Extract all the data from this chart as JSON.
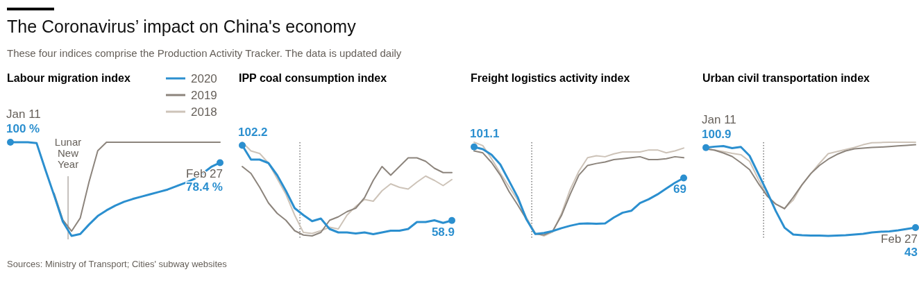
{
  "chart_data": [
    {
      "type": "other",
      "title": "The Coronavirus’ impact on China's economy",
      "subtitle": "These four indices comprise the Production Activity Tracker. The data is updated daily",
      "annotations": [
        "Sources: Ministry of Transport; Cities' subway websites"
      ]
    },
    {
      "type": "line",
      "title": "Labour migration index",
      "categories": [
        null,
        null,
        null,
        null,
        null,
        null,
        null,
        null,
        null,
        null,
        null,
        null,
        null,
        null,
        null,
        null,
        null,
        null,
        null,
        null,
        null,
        null,
        null,
        null,
        null
      ],
      "legend": "top right",
      "series": [
        {
          "name": "2020",
          "color": "#2b8fcf",
          "values": [
            100,
            100,
            100,
            99,
            71,
            44,
            16,
            1,
            3,
            13,
            22,
            28,
            33,
            37,
            40,
            42.5,
            45,
            47.5,
            50,
            53.5,
            57,
            61,
            67,
            74,
            78.4
          ],
          "value_labels": [
            "100 %",
            null,
            null,
            null,
            null,
            null,
            null,
            null,
            null,
            null,
            null,
            null,
            null,
            null,
            null,
            null,
            null,
            null,
            null,
            null,
            null,
            null,
            null,
            null,
            "78.4 %"
          ]
        },
        {
          "name": "2019",
          "color": "#8c847c",
          "values": [
            null,
            null,
            null,
            null,
            null,
            46,
            18,
            6,
            20,
            58,
            91,
            100,
            100,
            100,
            100,
            100,
            100,
            100,
            100,
            100,
            100,
            100,
            100,
            100,
            100
          ]
        },
        {
          "name": "2018",
          "color": "#cdc3b8",
          "values": [
            null,
            null,
            null,
            null,
            null,
            null,
            null,
            null,
            null,
            null,
            null,
            null,
            null,
            null,
            null,
            null,
            null,
            null,
            null,
            null,
            null,
            null,
            null,
            null,
            null
          ]
        }
      ],
      "annotations": [
        "Jan 11",
        "Feb 27",
        "Lunar New Year"
      ]
    },
    {
      "type": "line",
      "title": "IPP coal consumption index",
      "categories": [
        null,
        null,
        null,
        null,
        null,
        null,
        null,
        null,
        null,
        null,
        null,
        null,
        null,
        null,
        null,
        null,
        null,
        null,
        null,
        null,
        null,
        null,
        null,
        null,
        null
      ],
      "series": [
        {
          "color": "#2b8fcf",
          "values": [
            102.2,
            94,
            94,
            92,
            85,
            76,
            66,
            62,
            58.5,
            60,
            54,
            52,
            52,
            51.4,
            52,
            51,
            52,
            53,
            53,
            54,
            58,
            58,
            59,
            57.5,
            58.9
          ],
          "value_labels": [
            "102.2",
            null,
            null,
            null,
            null,
            null,
            null,
            null,
            null,
            null,
            null,
            null,
            null,
            null,
            null,
            null,
            null,
            null,
            null,
            null,
            null,
            null,
            null,
            null,
            "58.9"
          ]
        },
        {
          "color": "#8c847c",
          "values": [
            90,
            86,
            78,
            69,
            63,
            59,
            53,
            50.5,
            50,
            52,
            59,
            61,
            64,
            66,
            72,
            82,
            90,
            85,
            90,
            95,
            95,
            93,
            89,
            86.5,
            86.5
          ]
        },
        {
          "color": "#cdc3b8",
          "values": [
            104,
            99,
            97.5,
            92,
            83,
            74,
            62,
            52,
            51.4,
            53,
            55,
            54,
            62,
            67,
            71,
            70,
            76,
            80,
            78,
            77,
            81,
            84.5,
            82,
            79,
            82.5
          ]
        }
      ]
    },
    {
      "type": "line",
      "title": "Freight logistics activity index",
      "categories": [
        null,
        null,
        null,
        null,
        null,
        null,
        null,
        null,
        null,
        null,
        null,
        null,
        null,
        null,
        null,
        null,
        null,
        null,
        null,
        null,
        null,
        null,
        null,
        null,
        null
      ],
      "series": [
        {
          "color": "#2b8fcf",
          "values": [
            101.1,
            98.8,
            93,
            83,
            66,
            49,
            26,
            11,
            12,
            14,
            17,
            19.5,
            21.5,
            22,
            21.5,
            22,
            28,
            33,
            35,
            43,
            47,
            52,
            58,
            64,
            69
          ],
          "value_labels": [
            "101.1",
            null,
            null,
            null,
            null,
            null,
            null,
            null,
            null,
            null,
            null,
            null,
            null,
            null,
            null,
            null,
            null,
            null,
            null,
            null,
            null,
            null,
            null,
            null,
            "69"
          ]
        },
        {
          "color": "#8c847c",
          "values": [
            97,
            95,
            85,
            72,
            55,
            41,
            26,
            11,
            10,
            14,
            30,
            52,
            72,
            82,
            84,
            85.5,
            88,
            89,
            90,
            91,
            88,
            88,
            89,
            91,
            90
          ]
        },
        {
          "color": "#cdc3b8",
          "values": [
            106,
            102.5,
            89,
            74,
            60,
            46,
            28,
            12,
            9,
            13,
            32,
            57,
            76,
            90,
            92,
            91,
            94,
            96,
            96,
            96,
            98,
            98,
            95,
            97,
            100
          ]
        }
      ]
    },
    {
      "type": "line",
      "title": "Urban civil transportation index",
      "categories": [
        null,
        null,
        null,
        null,
        null,
        null,
        null,
        null,
        null,
        null,
        null,
        null,
        null,
        null,
        null,
        null,
        null,
        null,
        null,
        null,
        null,
        null,
        null,
        null,
        null
      ],
      "series": [
        {
          "color": "#2b8fcf",
          "values": [
            100.9,
            101.6,
            102,
            100.5,
            101.4,
            95,
            82,
            69,
            55,
            43,
            38,
            37.5,
            37.3,
            37.2,
            37,
            37.3,
            37.5,
            38,
            38.5,
            39.5,
            40,
            40.3,
            41,
            42,
            43
          ],
          "value_labels": [
            "100.9",
            null,
            null,
            null,
            null,
            null,
            null,
            null,
            null,
            null,
            null,
            null,
            null,
            null,
            null,
            null,
            null,
            null,
            null,
            null,
            null,
            null,
            null,
            null,
            "43"
          ]
        },
        {
          "color": "#8c847c",
          "values": [
            100,
            99,
            97,
            94.5,
            90,
            85,
            75,
            66,
            60,
            56.6,
            65,
            74,
            82,
            88,
            92.5,
            96,
            98.5,
            100,
            100.5,
            101,
            101.3,
            101.7,
            102.2,
            102.6,
            103
          ]
        },
        {
          "color": "#cdc3b8",
          "values": [
            100,
            99.2,
            98,
            96.8,
            95.8,
            91,
            78,
            66,
            60,
            57,
            63,
            74,
            82,
            89.5,
            96.5,
            98,
            99.5,
            101,
            103,
            104.4,
            104.6,
            104.8,
            104.8,
            104.8,
            104.8
          ]
        }
      ],
      "annotations": [
        "Jan 11",
        "Feb 27"
      ]
    }
  ]
}
